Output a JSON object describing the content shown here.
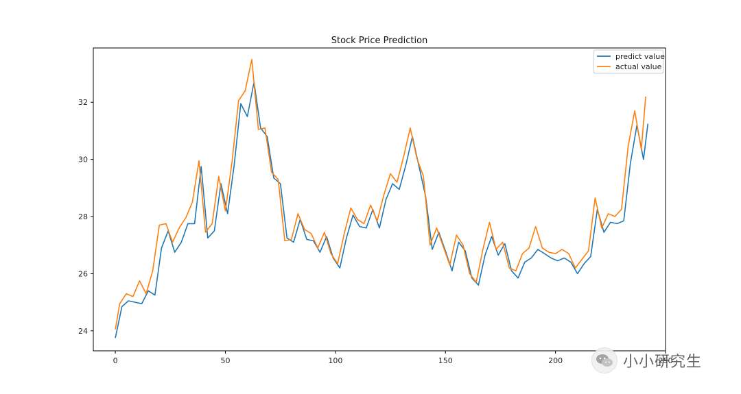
{
  "chart_data": {
    "type": "line",
    "title": "Stock Price Prediction",
    "xlabel": "",
    "ylabel": "",
    "xlim": [
      -10,
      250
    ],
    "ylim": [
      23.3,
      33.9
    ],
    "x_ticks": [
      0,
      50,
      100,
      150,
      200,
      250
    ],
    "y_ticks": [
      24,
      26,
      28,
      30,
      32
    ],
    "grid": false,
    "legend_position": "top-right",
    "series": [
      {
        "name": "predict value",
        "color": "#1f77b4",
        "x": [
          0,
          3,
          6,
          9,
          12,
          15,
          18,
          21,
          24,
          27,
          30,
          33,
          36,
          39,
          42,
          45,
          48,
          51,
          54,
          57,
          60,
          63,
          66,
          69,
          72,
          75,
          78,
          81,
          84,
          87,
          90,
          93,
          96,
          99,
          102,
          105,
          108,
          111,
          114,
          117,
          120,
          123,
          126,
          129,
          132,
          135,
          138,
          141,
          144,
          147,
          150,
          153,
          156,
          159,
          162,
          165,
          168,
          171,
          174,
          177,
          180,
          183,
          186,
          189,
          192,
          195,
          198,
          201,
          204,
          207,
          210,
          213,
          216,
          219,
          222,
          225,
          228,
          231,
          234,
          237,
          240,
          242
        ],
        "values": [
          23.75,
          24.85,
          25.05,
          25.0,
          24.95,
          25.4,
          25.25,
          26.9,
          27.5,
          26.75,
          27.1,
          27.75,
          27.75,
          29.75,
          27.25,
          27.5,
          29.15,
          28.1,
          29.8,
          31.95,
          31.5,
          32.7,
          31.1,
          30.8,
          29.35,
          29.15,
          27.25,
          27.1,
          27.9,
          27.2,
          27.15,
          26.75,
          27.3,
          26.55,
          26.2,
          27.25,
          28.05,
          27.65,
          27.6,
          28.25,
          27.6,
          28.6,
          29.15,
          28.95,
          29.8,
          30.8,
          29.75,
          28.7,
          26.85,
          27.45,
          26.8,
          26.1,
          27.1,
          26.8,
          25.85,
          25.6,
          26.65,
          27.3,
          26.65,
          27.05,
          26.1,
          25.85,
          26.4,
          26.55,
          26.85,
          26.7,
          26.55,
          26.45,
          26.55,
          26.4,
          26.0,
          26.35,
          26.6,
          28.25,
          27.45,
          27.8,
          27.75,
          27.85,
          29.85,
          31.2,
          30.0,
          31.25
        ]
      },
      {
        "name": "actual value",
        "color": "#ff7f0e",
        "x": [
          0,
          2,
          5,
          8,
          11,
          14,
          17,
          20,
          23,
          26,
          29,
          32,
          35,
          38,
          41,
          44,
          47,
          50,
          53,
          56,
          59,
          62,
          65,
          68,
          71,
          74,
          77,
          80,
          83,
          86,
          89,
          92,
          95,
          98,
          101,
          104,
          107,
          110,
          113,
          116,
          119,
          122,
          125,
          128,
          131,
          134,
          137,
          140,
          143,
          146,
          149,
          152,
          155,
          158,
          161,
          164,
          167,
          170,
          173,
          176,
          179,
          182,
          185,
          188,
          191,
          194,
          197,
          200,
          203,
          206,
          209,
          212,
          215,
          218,
          221,
          224,
          227,
          230,
          233,
          236,
          239,
          241
        ],
        "values": [
          24.05,
          24.95,
          25.3,
          25.2,
          25.75,
          25.3,
          26.1,
          27.7,
          27.75,
          27.1,
          27.6,
          27.95,
          28.5,
          29.95,
          27.45,
          27.75,
          29.4,
          28.2,
          29.9,
          32.05,
          32.4,
          33.5,
          31.05,
          31.1,
          29.55,
          29.3,
          27.15,
          27.2,
          28.1,
          27.55,
          27.4,
          26.9,
          27.45,
          26.7,
          26.35,
          27.4,
          28.3,
          27.9,
          27.75,
          28.4,
          27.85,
          28.75,
          29.5,
          29.2,
          30.1,
          31.1,
          30.05,
          29.4,
          27.0,
          27.6,
          26.95,
          26.3,
          27.35,
          27.0,
          26.0,
          25.7,
          26.85,
          27.8,
          26.85,
          27.1,
          26.2,
          26.1,
          26.7,
          26.9,
          27.65,
          26.9,
          26.75,
          26.7,
          26.85,
          26.7,
          26.2,
          26.5,
          26.8,
          28.65,
          27.6,
          28.1,
          28.0,
          28.25,
          30.45,
          31.7,
          30.35,
          32.2
        ]
      }
    ]
  },
  "watermark": {
    "text": "小小研究生",
    "icon": "wechat-icon"
  }
}
